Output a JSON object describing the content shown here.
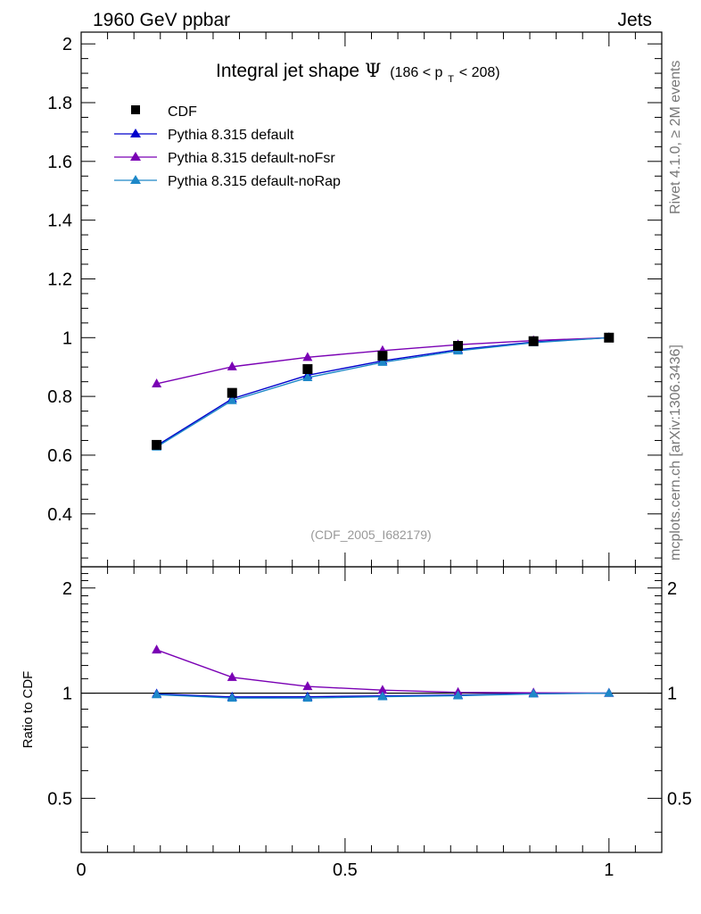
{
  "header": {
    "left_title": "1960 GeV ppbar",
    "right_title": "Jets"
  },
  "side_labels": {
    "rivet": "Rivet 4.1.0, ≥ 2M events",
    "mcplots": "mcplots.cern.ch [arXiv:1306.3436]"
  },
  "watermark": "(CDF_2005_I682179)",
  "chart_data": [
    {
      "type": "line",
      "title_main": "Integral jet shape",
      "title_symbol": "Ψ",
      "title_range_prefix": "(186 < p",
      "title_range_sub": "T",
      "title_range_suffix": " < 208)",
      "xlim": [
        0,
        1.1
      ],
      "ylim": [
        0.22,
        2.04
      ],
      "yticks": [
        0.4,
        0.6,
        0.8,
        1,
        1.2,
        1.4,
        1.6,
        1.8,
        2
      ],
      "ytick_labels": [
        "0.4",
        "0.6",
        "0.8",
        "1",
        "1.2",
        "1.4",
        "1.6",
        "1.8",
        "2"
      ],
      "legend_position": "top-left",
      "x": [
        0.143,
        0.286,
        0.429,
        0.571,
        0.714,
        0.857,
        1.0
      ],
      "series": [
        {
          "name": "CDF",
          "marker": "square",
          "color": "#000000",
          "values": [
            0.635,
            0.812,
            0.893,
            0.938,
            0.972,
            0.988,
            1.0
          ]
        },
        {
          "name": "Pythia 8.315 default",
          "marker": "triangle",
          "color": "#0000cc",
          "values": [
            0.632,
            0.792,
            0.872,
            0.921,
            0.959,
            0.985,
            1.0
          ]
        },
        {
          "name": "Pythia 8.315 default-noFsr",
          "marker": "triangle",
          "color": "#7a00b4",
          "values": [
            0.843,
            0.901,
            0.933,
            0.956,
            0.976,
            0.99,
            1.0
          ]
        },
        {
          "name": "Pythia 8.315 default-noRap",
          "marker": "triangle",
          "color": "#1e88c8",
          "values": [
            0.628,
            0.786,
            0.864,
            0.916,
            0.955,
            0.983,
            1.0
          ]
        }
      ]
    },
    {
      "type": "line",
      "ylabel": "Ratio to CDF",
      "xlim": [
        0,
        1.1
      ],
      "ylim": [
        0.35,
        2.3
      ],
      "yscale": "log",
      "yticks": [
        0.5,
        1,
        2
      ],
      "ytick_labels": [
        "0.5",
        "1",
        "2"
      ],
      "xticks": [
        0,
        0.5,
        1
      ],
      "xtick_labels": [
        "0",
        "0.5",
        "1"
      ],
      "reference_line": 1,
      "x": [
        0.143,
        0.286,
        0.429,
        0.571,
        0.714,
        0.857,
        1.0
      ],
      "series": [
        {
          "name": "Pythia 8.315 default",
          "color": "#0000cc",
          "values": [
            0.995,
            0.975,
            0.976,
            0.982,
            0.987,
            0.997,
            1.0
          ]
        },
        {
          "name": "Pythia 8.315 default-noFsr",
          "color": "#7a00b4",
          "values": [
            1.33,
            1.11,
            1.045,
            1.02,
            1.005,
            1.002,
            1.0
          ]
        },
        {
          "name": "Pythia 8.315 default-noRap",
          "color": "#1e88c8",
          "values": [
            0.99,
            0.968,
            0.968,
            0.977,
            0.983,
            0.995,
            1.0
          ]
        }
      ]
    }
  ]
}
